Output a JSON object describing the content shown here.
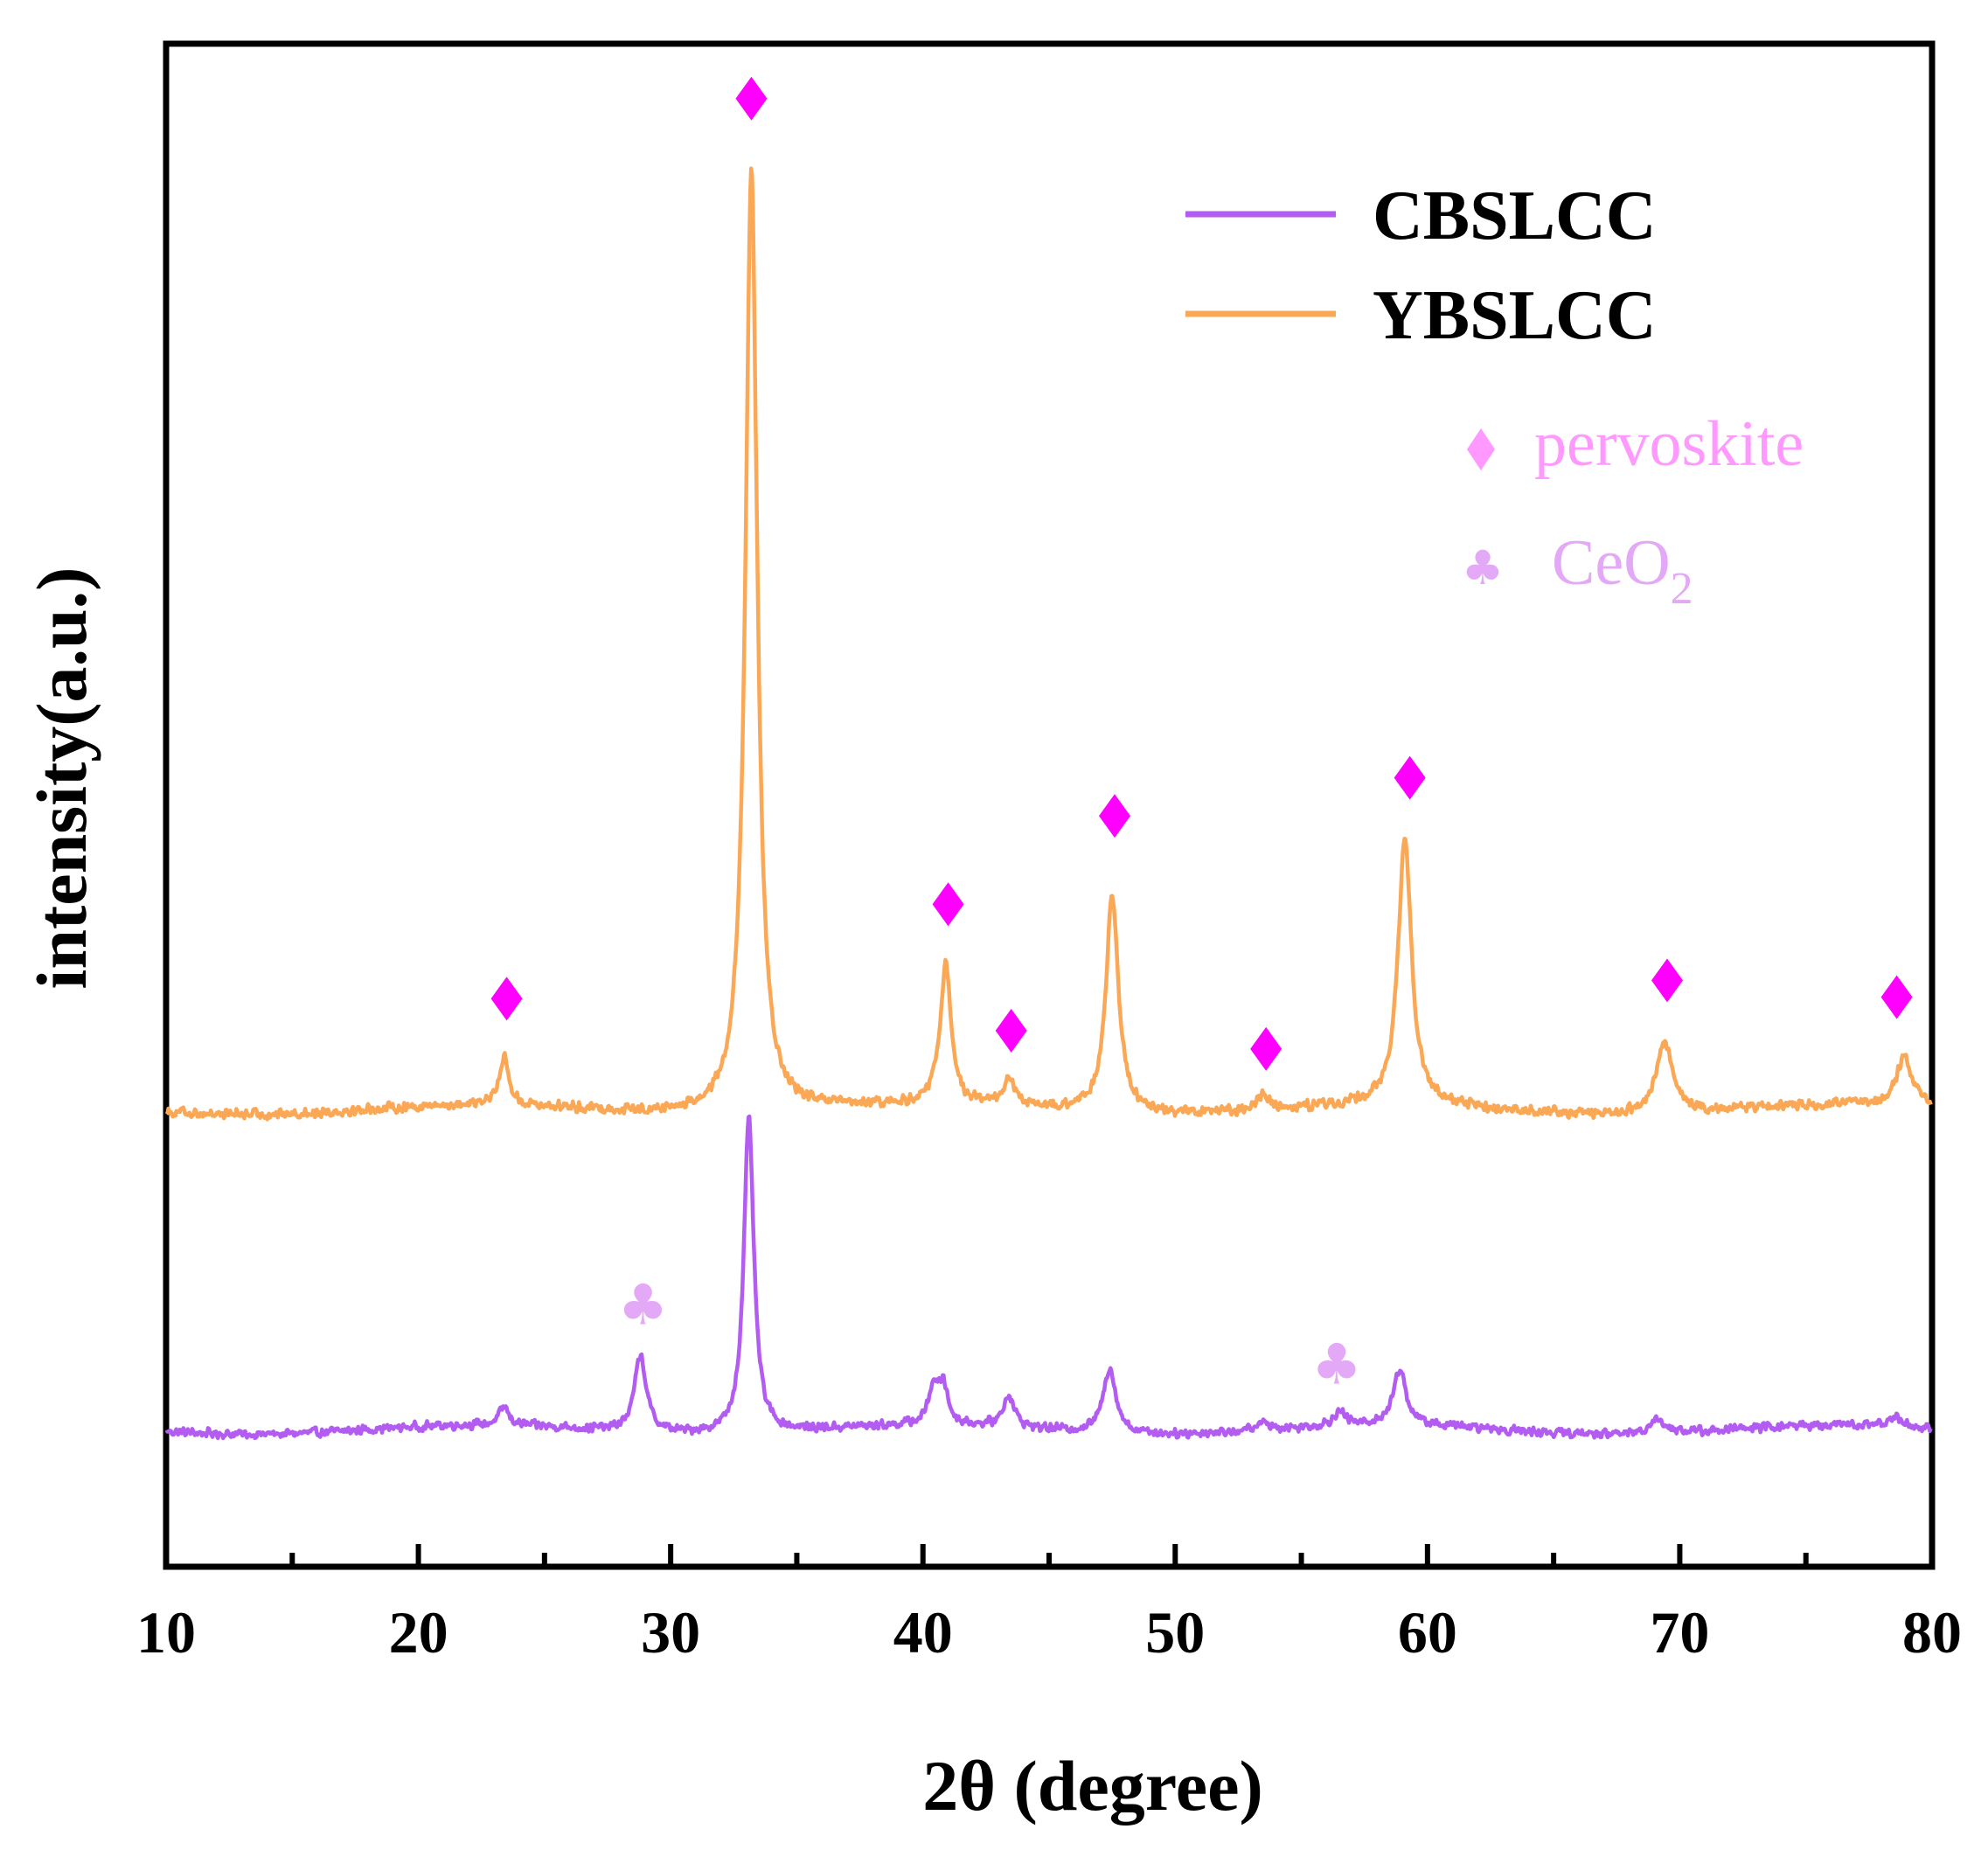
{
  "chart_data": {
    "type": "line",
    "title": "",
    "xlabel": "2θ (degree)",
    "ylabel": "intensity(a.u.)",
    "xlim": [
      10,
      80
    ],
    "ylim": [
      0,
      100
    ],
    "xticks": [
      10,
      20,
      30,
      40,
      50,
      60,
      70,
      80
    ],
    "xtick_labels": [
      "10",
      "20",
      "30",
      "40",
      "50",
      "60",
      "70",
      "80"
    ],
    "grid": false,
    "legend_position": "top-right",
    "series": [
      {
        "name": "CBSLCC",
        "color": "#b35cf2",
        "baseline": 9,
        "noise": 0.35,
        "peaks": [
          {
            "x": 23.4,
            "height": 1.2,
            "width": 0.22
          },
          {
            "x": 28.8,
            "height": 5.0,
            "width": 0.28
          },
          {
            "x": 33.1,
            "height": 20.6,
            "width": 0.24
          },
          {
            "x": 40.4,
            "height": 2.3,
            "width": 0.22
          },
          {
            "x": 40.8,
            "height": 2.6,
            "width": 0.22
          },
          {
            "x": 43.4,
            "height": 2.1,
            "width": 0.26
          },
          {
            "x": 47.4,
            "height": 4.3,
            "width": 0.3
          },
          {
            "x": 53.5,
            "height": 0.5,
            "width": 0.3
          },
          {
            "x": 56.5,
            "height": 0.9,
            "width": 0.3
          },
          {
            "x": 58.9,
            "height": 3.7,
            "width": 0.3
          },
          {
            "x": 69.1,
            "height": 1.0,
            "width": 0.35
          },
          {
            "x": 78.5,
            "height": 0.6,
            "width": 0.35
          }
        ]
      },
      {
        "name": "YBSLCC",
        "color": "#fba856",
        "baseline": 30,
        "noise": 0.4,
        "peaks": [
          {
            "x": 23.4,
            "height": 3.2,
            "width": 0.22
          },
          {
            "x": 33.2,
            "height": 62.0,
            "width": 0.28
          },
          {
            "x": 40.9,
            "height": 9.2,
            "width": 0.26
          },
          {
            "x": 43.4,
            "height": 1.8,
            "width": 0.26
          },
          {
            "x": 47.5,
            "height": 14.2,
            "width": 0.3
          },
          {
            "x": 53.5,
            "height": 0.9,
            "width": 0.3
          },
          {
            "x": 59.1,
            "height": 17.4,
            "width": 0.32
          },
          {
            "x": 69.4,
            "height": 4.7,
            "width": 0.38
          },
          {
            "x": 78.9,
            "height": 3.3,
            "width": 0.4
          }
        ]
      }
    ],
    "annotations": [
      {
        "type": "perovskite",
        "symbol": "♦",
        "x": 23.5,
        "y": 37.3
      },
      {
        "type": "perovskite",
        "symbol": "♦",
        "x": 33.2,
        "y": 96.4
      },
      {
        "type": "perovskite",
        "symbol": "♦",
        "x": 41.0,
        "y": 43.5
      },
      {
        "type": "perovskite",
        "symbol": "♦",
        "x": 43.5,
        "y": 35.2
      },
      {
        "type": "perovskite",
        "symbol": "♦",
        "x": 47.6,
        "y": 49.3
      },
      {
        "type": "perovskite",
        "symbol": "♦",
        "x": 53.6,
        "y": 34.0
      },
      {
        "type": "perovskite",
        "symbol": "♦",
        "x": 59.3,
        "y": 51.8
      },
      {
        "type": "perovskite",
        "symbol": "♦",
        "x": 69.5,
        "y": 38.5
      },
      {
        "type": "perovskite",
        "symbol": "♦",
        "x": 78.6,
        "y": 37.4
      },
      {
        "type": "CeO2",
        "symbol": "♣",
        "x": 28.9,
        "y": 17.2
      },
      {
        "type": "CeO2",
        "symbol": "♣",
        "x": 56.4,
        "y": 13.3
      }
    ],
    "marker_legend": [
      {
        "symbol": "♦",
        "label": "pervoskite",
        "color": "#ff99ff"
      },
      {
        "symbol": "♣",
        "label": "CeO",
        "subscript": "2",
        "color": "#e3a9f7"
      }
    ],
    "marker_colors": {
      "perovskite": "#ff00ff",
      "CeO2": "#e3a9f7"
    }
  }
}
